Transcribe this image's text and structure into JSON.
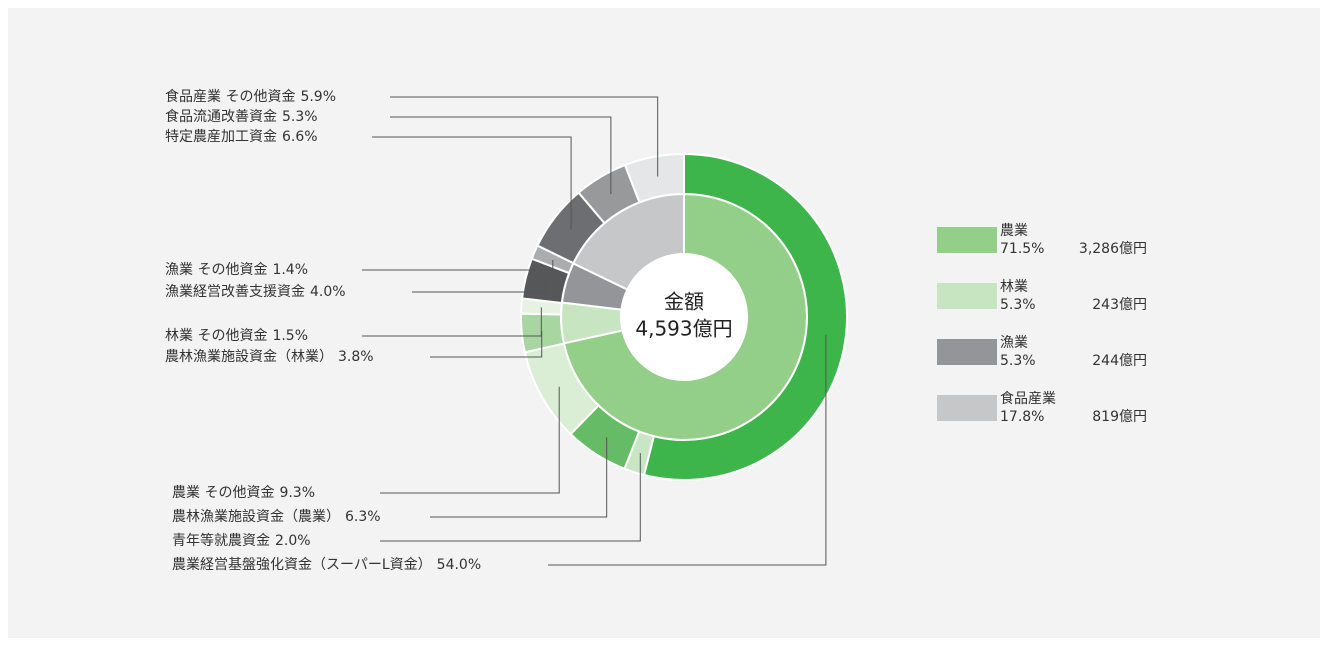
{
  "chart_data": {
    "type": "sunburst",
    "center_title": "金額",
    "total": 4593,
    "total_label": "4,593億円",
    "groups": [
      {
        "name": "農業",
        "color": "#94cf8a",
        "value": 71.5,
        "value_label": "71.5%",
        "amount": 3286,
        "amount_label": "3,286億円",
        "items": [
          {
            "name": "農業経営基盤強化資金（スーパーL資金）",
            "color": "#3db54a",
            "value": 54.0,
            "value_label": "54.0%"
          },
          {
            "name": "青年等就農資金",
            "color": "#c8e6c3",
            "value": 2.0,
            "value_label": "2.0%"
          },
          {
            "name": "農林漁業施設資金（農業）",
            "color": "#66bb66",
            "value": 6.3,
            "value_label": "6.3%"
          },
          {
            "name": "農業 その他資金",
            "color": "#d9eed5",
            "value": 9.3,
            "value_label": "9.3%"
          }
        ]
      },
      {
        "name": "林業",
        "color": "#c7e5c1",
        "value": 5.3,
        "value_label": "5.3%",
        "amount": 243,
        "amount_label": "243億円",
        "items": [
          {
            "name": "農林漁業施設資金（林業）",
            "color": "#a8d6a0",
            "value": 3.8,
            "value_label": "3.8%"
          },
          {
            "name": "林業 その他資金",
            "color": "#e6f3e3",
            "value": 1.5,
            "value_label": "1.5%"
          }
        ]
      },
      {
        "name": "漁業",
        "color": "#939598",
        "value": 5.3,
        "value_label": "5.3%",
        "amount": 244,
        "amount_label": "244億円",
        "items": [
          {
            "name": "漁業経営改善支援資金",
            "color": "#555759",
            "value": 4.0,
            "value_label": "4.0%"
          },
          {
            "name": "漁業 その他資金",
            "color": "#aaacae",
            "value": 1.4,
            "value_label": "1.4%"
          }
        ]
      },
      {
        "name": "食品産業",
        "color": "#c6c7c9",
        "value": 17.8,
        "value_label": "17.8%",
        "amount": 819,
        "amount_label": "819億円",
        "items": [
          {
            "name": "特定農産加工資金",
            "color": "#6d6e71",
            "value": 6.6,
            "value_label": "6.6%"
          },
          {
            "name": "食品流通改善資金",
            "color": "#98999b",
            "value": 5.3,
            "value_label": "5.3%"
          },
          {
            "name": "食品産業 その他資金",
            "color": "#e5e6e7",
            "value": 5.9,
            "value_label": "5.9%"
          }
        ]
      }
    ]
  }
}
